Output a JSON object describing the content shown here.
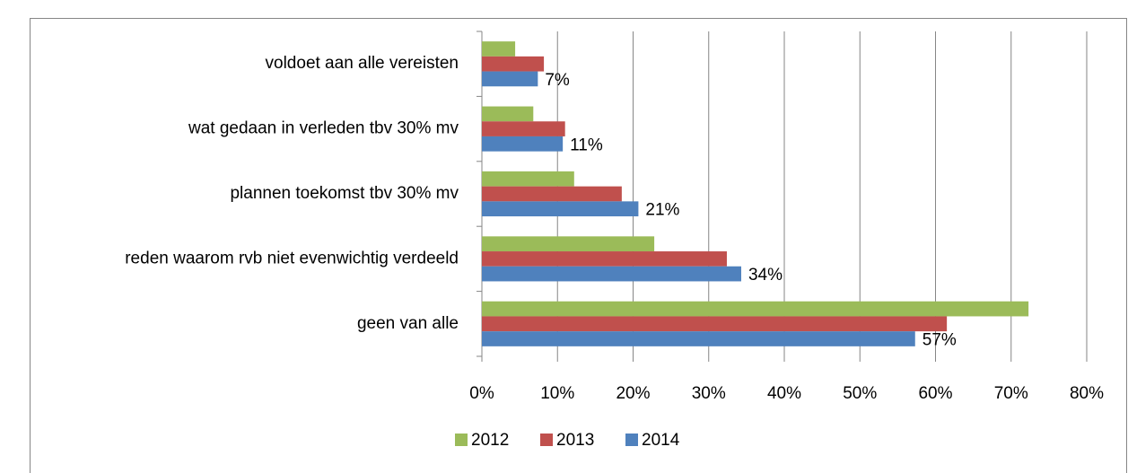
{
  "chart_data": {
    "type": "hbar",
    "categories": [
      "voldoet aan alle vereisten",
      "wat gedaan in verleden tbv 30% mv",
      "plannen toekomst tbv 30% mv",
      "reden waarom rvb niet evenwichtig verdeeld",
      "geen van alle"
    ],
    "series": [
      {
        "name": "2012",
        "color": "#9bbb59",
        "values": [
          4.4,
          6.8,
          12.2,
          22.8,
          72.3
        ]
      },
      {
        "name": "2013",
        "color": "#c0504d",
        "values": [
          8.2,
          11.0,
          18.5,
          32.4,
          61.5
        ]
      },
      {
        "name": "2014",
        "color": "#4f81bd",
        "values": [
          7.4,
          10.7,
          20.7,
          34.3,
          57.3
        ],
        "value_labels": [
          "7%",
          "11%",
          "21%",
          "34%",
          "57%"
        ]
      }
    ],
    "xlim": [
      0,
      80
    ],
    "xticks": [
      {
        "value": 0,
        "label": "0%"
      },
      {
        "value": 10,
        "label": "10%"
      },
      {
        "value": 20,
        "label": "20%"
      },
      {
        "value": 30,
        "label": "30%"
      },
      {
        "value": 40,
        "label": "40%"
      },
      {
        "value": 50,
        "label": "50%"
      },
      {
        "value": 60,
        "label": "60%"
      },
      {
        "value": 70,
        "label": "70%"
      },
      {
        "value": 80,
        "label": "80%"
      }
    ],
    "grid": true,
    "legend": "bottom"
  }
}
